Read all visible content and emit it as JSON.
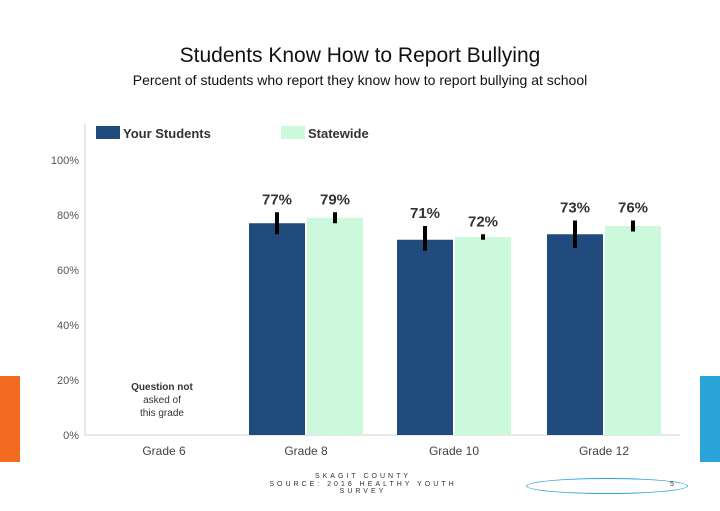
{
  "slide": {
    "title": "Students Know How to Report Bullying",
    "subtitle": "Percent of students who report they know how to report bullying at school",
    "footer_county": "SKAGIT COUNTY",
    "footer_source": "SOURCE: 2016 HEALTHY YOUTH SURVEY",
    "page_number": "5"
  },
  "colors": {
    "your_students": "#1f4b7d",
    "statewide": "#ccf9dc",
    "error_bar": "#000000",
    "accent_left": "#f26b21",
    "accent_right": "#2aa3d8"
  },
  "chart_data": {
    "type": "bar",
    "categories": [
      "Grade 6",
      "Grade 8",
      "Grade 10",
      "Grade 12"
    ],
    "series": [
      {
        "name": "Your Students",
        "values": [
          null,
          77,
          71,
          73
        ],
        "labels": [
          "",
          "77%",
          "71%",
          "73%"
        ]
      },
      {
        "name": "Statewide",
        "values": [
          null,
          79,
          72,
          76
        ],
        "labels": [
          "",
          "79%",
          "72%",
          "76%"
        ]
      }
    ],
    "error_bars": [
      {
        "series": "Your Students",
        "low": [
          null,
          73,
          67,
          68
        ],
        "high": [
          null,
          81,
          76,
          78
        ]
      },
      {
        "series": "Statewide",
        "low": [
          null,
          77,
          71,
          74
        ],
        "high": [
          null,
          81,
          73,
          78
        ]
      }
    ],
    "yticks": [
      "0%",
      "20%",
      "40%",
      "60%",
      "80%",
      "100%"
    ],
    "ylim": [
      0,
      100
    ],
    "legend_position": "top",
    "annotation": [
      "Question not",
      "asked of",
      "this grade"
    ],
    "grid": false
  }
}
